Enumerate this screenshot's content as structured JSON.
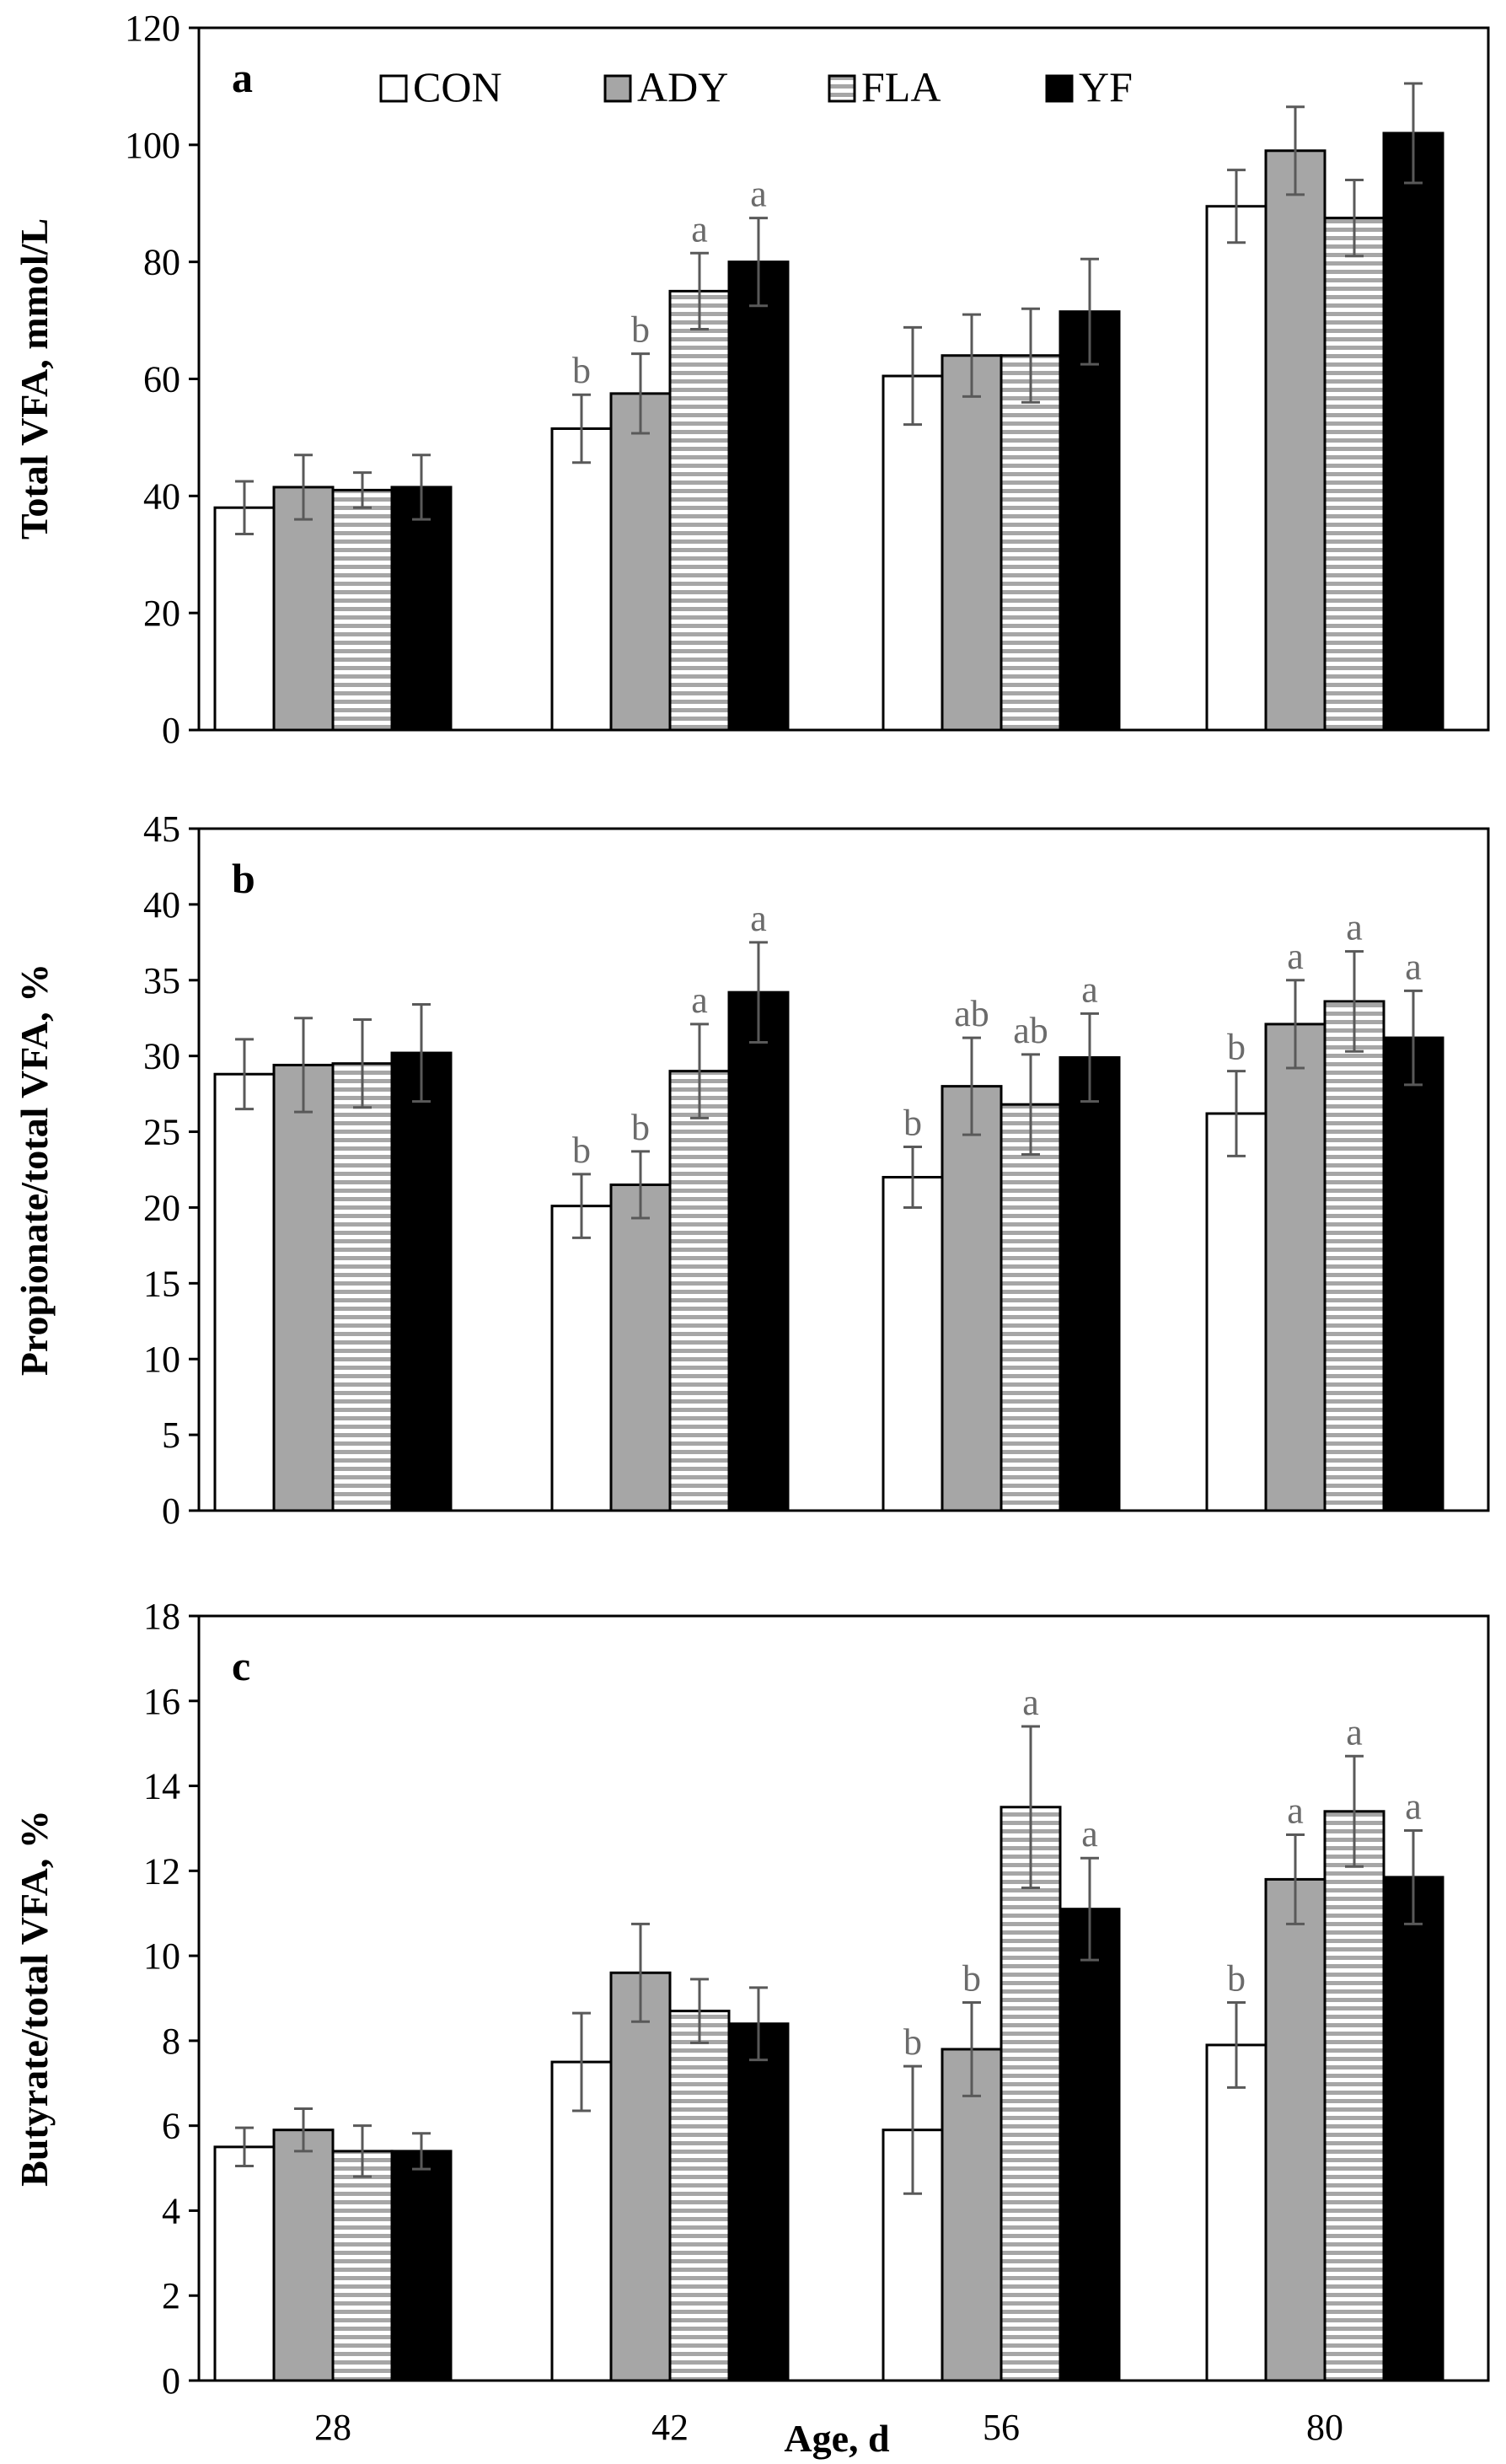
{
  "legend": [
    "CON",
    "ADY",
    "FLA",
    "YF"
  ],
  "series_styles": {
    "CON": {
      "fill": "#ffffff",
      "pattern": "none"
    },
    "ADY": {
      "fill": "#a6a6a6",
      "pattern": "none"
    },
    "FLA": {
      "fill": "#ffffff",
      "pattern": "horizontal-stripes",
      "stripe_color": "#a6a6a6"
    },
    "YF": {
      "fill": "#000000",
      "pattern": "none"
    }
  },
  "colors": {
    "axis": "#000000",
    "bar_outline": "#000000",
    "error_bar": "#595959",
    "sig_letter": "#6b6b6b"
  },
  "xlabel": "Age, d",
  "chart_data": [
    {
      "type": "bar",
      "panel": "a",
      "categories": [
        "28",
        "42",
        "56",
        "80"
      ],
      "ylabel": "Total VFA, mmol/L",
      "ylim": [
        0,
        120
      ],
      "yticks": [
        0,
        20,
        40,
        60,
        80,
        100,
        120
      ],
      "series": [
        {
          "name": "CON",
          "values": [
            38,
            51.5,
            60.5,
            89.5
          ],
          "errors": [
            4.5,
            5.8,
            8.3,
            6.2
          ],
          "sig": [
            "",
            "b",
            "",
            ""
          ]
        },
        {
          "name": "ADY",
          "values": [
            41.5,
            57.5,
            64,
            99
          ],
          "errors": [
            5.5,
            6.8,
            7,
            7.5
          ],
          "sig": [
            "",
            "b",
            "",
            ""
          ]
        },
        {
          "name": "FLA",
          "values": [
            41,
            75,
            64,
            87.5
          ],
          "errors": [
            3,
            6.5,
            8,
            6.5
          ],
          "sig": [
            "",
            "a",
            "",
            ""
          ]
        },
        {
          "name": "YF",
          "values": [
            41.5,
            80,
            71.5,
            102
          ],
          "errors": [
            5.5,
            7.5,
            9,
            8.5
          ],
          "sig": [
            "",
            "a",
            "",
            ""
          ]
        }
      ]
    },
    {
      "type": "bar",
      "panel": "b",
      "categories": [
        "28",
        "42",
        "56",
        "80"
      ],
      "ylabel": "Propionate/total VFA, %",
      "ylim": [
        0,
        45
      ],
      "yticks": [
        0,
        5,
        10,
        15,
        20,
        25,
        30,
        35,
        40,
        45
      ],
      "series": [
        {
          "name": "CON",
          "values": [
            28.8,
            20.1,
            22,
            26.2
          ],
          "errors": [
            2.3,
            2.1,
            2.0,
            2.8
          ],
          "sig": [
            "",
            "b",
            "b",
            "b"
          ]
        },
        {
          "name": "ADY",
          "values": [
            29.4,
            21.5,
            28,
            32.1
          ],
          "errors": [
            3.1,
            2.2,
            3.2,
            2.9
          ],
          "sig": [
            "",
            "b",
            "ab",
            "a"
          ]
        },
        {
          "name": "FLA",
          "values": [
            29.5,
            29,
            26.8,
            33.6
          ],
          "errors": [
            2.9,
            3.1,
            3.3,
            3.3
          ],
          "sig": [
            "",
            "a",
            "ab",
            "a"
          ]
        },
        {
          "name": "YF",
          "values": [
            30.2,
            34.2,
            29.9,
            31.2
          ],
          "errors": [
            3.2,
            3.3,
            2.9,
            3.1
          ],
          "sig": [
            "",
            "a",
            "a",
            "a"
          ]
        }
      ]
    },
    {
      "type": "bar",
      "panel": "c",
      "categories": [
        "28",
        "42",
        "56",
        "80"
      ],
      "ylabel": "Butyrate/total VFA, %",
      "ylim": [
        0,
        18
      ],
      "yticks": [
        0,
        2,
        4,
        6,
        8,
        10,
        12,
        14,
        16,
        18
      ],
      "series": [
        {
          "name": "CON",
          "values": [
            5.5,
            7.5,
            5.9,
            7.9
          ],
          "errors": [
            0.45,
            1.15,
            1.5,
            1.0
          ],
          "sig": [
            "",
            "",
            "b",
            "b"
          ]
        },
        {
          "name": "ADY",
          "values": [
            5.9,
            9.6,
            7.8,
            11.8
          ],
          "errors": [
            0.5,
            1.15,
            1.1,
            1.05
          ],
          "sig": [
            "",
            "",
            "b",
            "a"
          ]
        },
        {
          "name": "FLA",
          "values": [
            5.4,
            8.7,
            13.5,
            13.4
          ],
          "errors": [
            0.6,
            0.75,
            1.9,
            1.3
          ],
          "sig": [
            "",
            "",
            "a",
            "a"
          ]
        },
        {
          "name": "YF",
          "values": [
            5.4,
            8.4,
            11.1,
            11.85
          ],
          "errors": [
            0.42,
            0.85,
            1.2,
            1.1
          ],
          "sig": [
            "",
            "",
            "a",
            "a"
          ]
        }
      ]
    }
  ]
}
